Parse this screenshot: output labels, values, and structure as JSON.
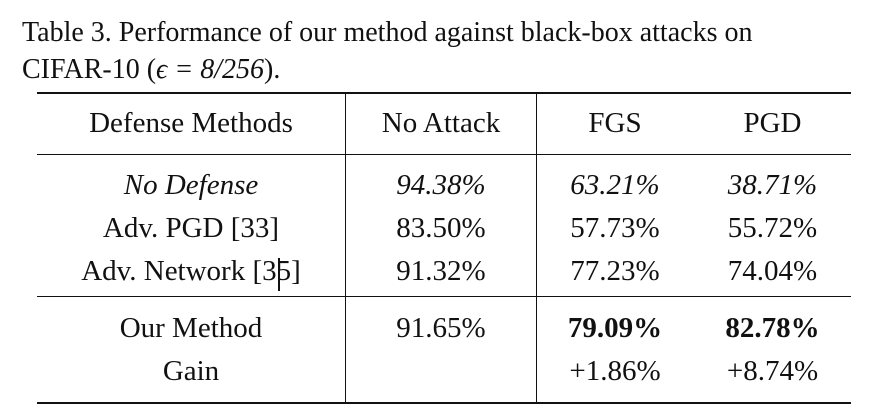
{
  "caption": {
    "prefix": "Table 3. Performance of our method against black-box attacks on",
    "line2_prefix": "CIFAR-10 (",
    "epsilon_expr": "ϵ = 8/256",
    "line2_suffix": ")."
  },
  "table": {
    "headers": [
      "Defense Methods",
      "No Attack",
      "FGS",
      "PGD"
    ],
    "rows": [
      {
        "method": "No Defense",
        "no_attack": "94.38%",
        "fgs": "63.21%",
        "pgd": "38.71%"
      },
      {
        "method": "Adv. PGD [33]",
        "no_attack": "83.50%",
        "fgs": "57.73%",
        "pgd": "55.72%"
      },
      {
        "method": "Adv. Network [35]",
        "no_attack": "91.32%",
        "fgs": "77.23%",
        "pgd": "74.04%"
      },
      {
        "method": "Our Method",
        "no_attack": "91.65%",
        "fgs": "79.09%",
        "pgd": "82.78%"
      },
      {
        "method": "Gain",
        "no_attack": "",
        "fgs": "+1.86%",
        "pgd": "+8.74%"
      }
    ]
  }
}
